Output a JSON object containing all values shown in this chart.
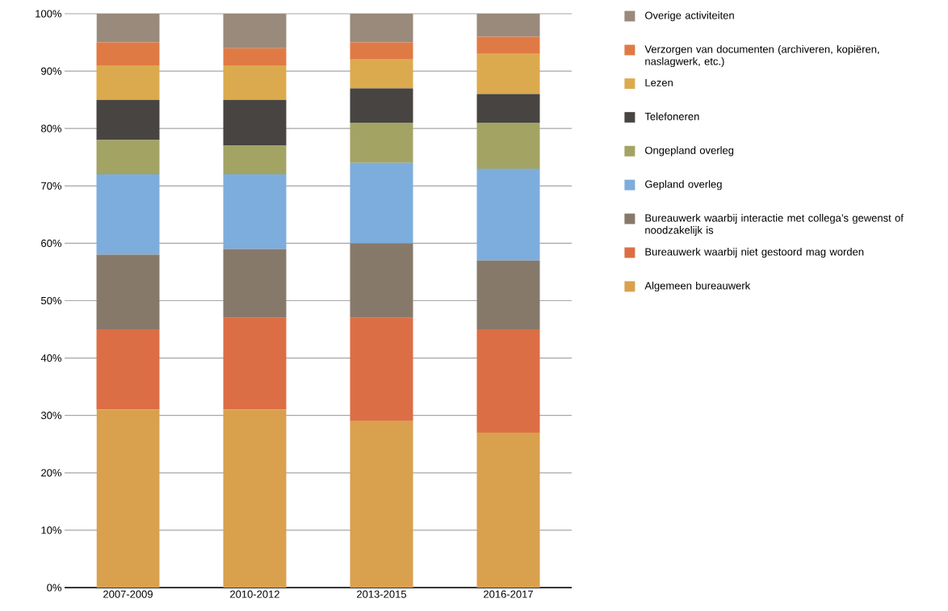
{
  "chart_data": {
    "type": "bar",
    "stacked": true,
    "grid": "y",
    "legend": "right",
    "categories": [
      "2007-2009",
      "2010-2012",
      "2013-2015",
      "2016-2017"
    ],
    "ylim": [
      0,
      100
    ],
    "yticks": [
      {
        "value": 0,
        "label": "0%"
      },
      {
        "value": 10,
        "label": "10%"
      },
      {
        "value": 20,
        "label": "20%"
      },
      {
        "value": 30,
        "label": "30%"
      },
      {
        "value": 40,
        "label": "40%"
      },
      {
        "value": 50,
        "label": "50%"
      },
      {
        "value": 60,
        "label": "60%"
      },
      {
        "value": 70,
        "label": "70%"
      },
      {
        "value": 80,
        "label": "80%"
      },
      {
        "value": 90,
        "label": "90%"
      },
      {
        "value": 100,
        "label": "100%"
      }
    ],
    "series": [
      {
        "name": "Algemeen bureauwerk",
        "color": "#d9a04e",
        "values": [
          31,
          31,
          29,
          27
        ]
      },
      {
        "name": "Bureauwerk waarbij niet gestoord mag worden",
        "color": "#dc6e45",
        "values": [
          14,
          16,
          18,
          18
        ]
      },
      {
        "name": "Bureauwerk waarbij interactie met collega’s gewenst of noodzakelijk is",
        "color": "#87796a",
        "values": [
          13,
          12,
          13,
          12
        ]
      },
      {
        "name": "Gepland overleg",
        "color": "#7daddc",
        "values": [
          14,
          13,
          14,
          16
        ]
      },
      {
        "name": "Ongepland overleg",
        "color": "#a3a364",
        "values": [
          6,
          5,
          7,
          8
        ]
      },
      {
        "name": "Telefoneren",
        "color": "#484441",
        "values": [
          7,
          8,
          6,
          5
        ]
      },
      {
        "name": "Lezen",
        "color": "#dcaa4e",
        "values": [
          6,
          6,
          5,
          7
        ]
      },
      {
        "name": "Verzorgen van documenten (archiveren, kopiëren, naslagwerk, etc.)",
        "color": "#e07a45",
        "values": [
          4,
          3,
          3,
          3
        ]
      },
      {
        "name": "Overige activiteiten",
        "color": "#998a7b",
        "values": [
          5,
          6,
          5,
          4
        ]
      }
    ]
  }
}
